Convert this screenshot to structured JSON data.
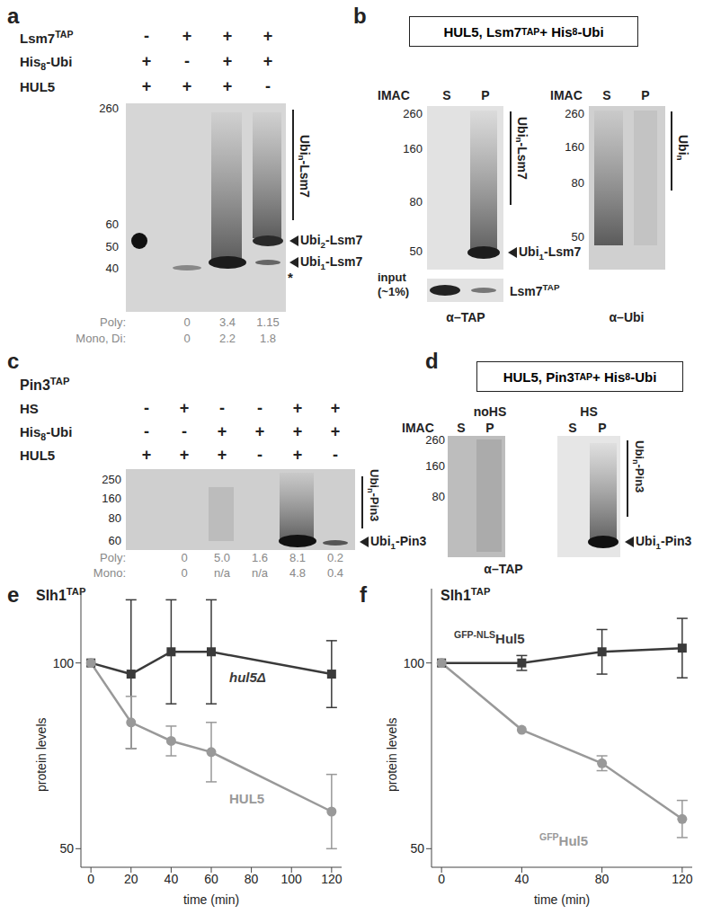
{
  "panels": {
    "a": {
      "letter": "a",
      "rows": [
        {
          "label": "Lsm7TAP",
          "signs": [
            "-",
            "+",
            "+",
            "+"
          ]
        },
        {
          "label": "His8-Ubi",
          "signs": [
            "+",
            "-",
            "+",
            "+"
          ]
        },
        {
          "label": "HUL5",
          "signs": [
            "+",
            "+",
            "+",
            "-"
          ]
        }
      ],
      "markers": [
        260,
        60,
        50,
        40
      ],
      "bracket": "Ubin-Lsm7",
      "bands": [
        "Ubi2-Lsm7",
        "Ubi1-Lsm7"
      ],
      "asterisk": "*",
      "quant": [
        {
          "label": "Poly:",
          "values": [
            null,
            "0",
            "3.4",
            "1.15"
          ]
        },
        {
          "label": "Mono, Di:",
          "values": [
            null,
            "0",
            "2.2",
            "1.8"
          ]
        }
      ]
    },
    "b": {
      "letter": "b",
      "box": "HUL5, Lsm7TAP + His8-Ubi",
      "left": {
        "imac": "IMAC",
        "lanes": [
          "S",
          "P"
        ],
        "markers": [
          260,
          160,
          80,
          50
        ],
        "bracket": "Ubin-Lsm7",
        "band": "Ubi1-Lsm7",
        "input_label": [
          "input",
          "(~1%)"
        ],
        "input_band": "Lsm7TAP",
        "antibody": "α–TAP"
      },
      "right": {
        "imac": "IMAC",
        "lanes": [
          "S",
          "P"
        ],
        "markers": [
          260,
          160,
          80,
          50
        ],
        "bracket": "Ubin",
        "antibody": "α–Ubi"
      }
    },
    "c": {
      "letter": "c",
      "title": "Pin3TAP",
      "rows": [
        {
          "label": "HS",
          "signs": [
            "-",
            "+",
            "-",
            "-",
            "+",
            "+"
          ]
        },
        {
          "label": "His8-Ubi",
          "signs": [
            "-",
            "-",
            "+",
            "+",
            "+",
            "+"
          ]
        },
        {
          "label": "HUL5",
          "signs": [
            "+",
            "+",
            "+",
            "-",
            "+",
            "-"
          ]
        }
      ],
      "markers": [
        250,
        160,
        80,
        60
      ],
      "bracket": "Ubin-Pin3",
      "band": "Ubi1-Pin3",
      "quant": [
        {
          "label": "Poly:",
          "values": [
            null,
            "0",
            "5.0",
            "1.6",
            "8.1",
            "0.2"
          ]
        },
        {
          "label": "Mono:",
          "values": [
            null,
            "0",
            "n/a",
            "n/a",
            "4.8",
            "0.4"
          ]
        }
      ]
    },
    "d": {
      "letter": "d",
      "box": "HUL5, Pin3TAP + His8-Ubi",
      "imac": "IMAC",
      "groups": [
        {
          "label": "noHS",
          "lanes": [
            "S",
            "P"
          ]
        },
        {
          "label": "HS",
          "lanes": [
            "S",
            "P"
          ]
        }
      ],
      "markers": [
        260,
        160,
        80
      ],
      "bracket": "Ubin-Pin3",
      "band": "Ubi1-Pin3",
      "antibody": "α–TAP"
    }
  },
  "chart_data": [
    {
      "letter": "e",
      "type": "line",
      "title": "Slh1TAP",
      "x_label": "time (min)",
      "y_label": "protein levels",
      "xlim": [
        -5,
        125
      ],
      "xticks": [
        0,
        20,
        40,
        60,
        80,
        100,
        120
      ],
      "ylim": [
        45,
        120
      ],
      "yticks": [
        50,
        100
      ],
      "grid": false,
      "series": [
        {
          "name": "hul5Δ",
          "color": "#3a3a3a",
          "marker": "square",
          "x": [
            0,
            20,
            40,
            60,
            120
          ],
          "values": [
            100,
            97,
            103,
            103,
            97
          ],
          "errors": [
            0,
            20,
            14,
            14,
            9
          ]
        },
        {
          "name": "HUL5",
          "color": "#999999",
          "marker": "circle",
          "x": [
            0,
            20,
            40,
            60,
            120
          ],
          "values": [
            100,
            84,
            79,
            76,
            60
          ],
          "errors": [
            0,
            7,
            4,
            8,
            10
          ]
        }
      ]
    },
    {
      "letter": "f",
      "type": "line",
      "title": "Slh1TAP",
      "x_label": "time (min)",
      "y_label": "protein levels",
      "xlim": [
        -5,
        125
      ],
      "xticks": [
        0,
        40,
        80,
        120
      ],
      "ylim": [
        45,
        120
      ],
      "yticks": [
        50,
        100
      ],
      "grid": false,
      "series": [
        {
          "name": "GFP-NLSHul5",
          "color": "#3a3a3a",
          "marker": "square",
          "x": [
            0,
            40,
            80,
            120
          ],
          "values": [
            100,
            100,
            103,
            104
          ],
          "errors": [
            0,
            2,
            6,
            8
          ]
        },
        {
          "name": "GFPHul5",
          "color": "#999999",
          "marker": "circle",
          "x": [
            0,
            40,
            80,
            120
          ],
          "values": [
            100,
            82,
            73,
            58
          ],
          "errors": [
            0,
            0,
            2,
            5
          ]
        }
      ]
    }
  ]
}
